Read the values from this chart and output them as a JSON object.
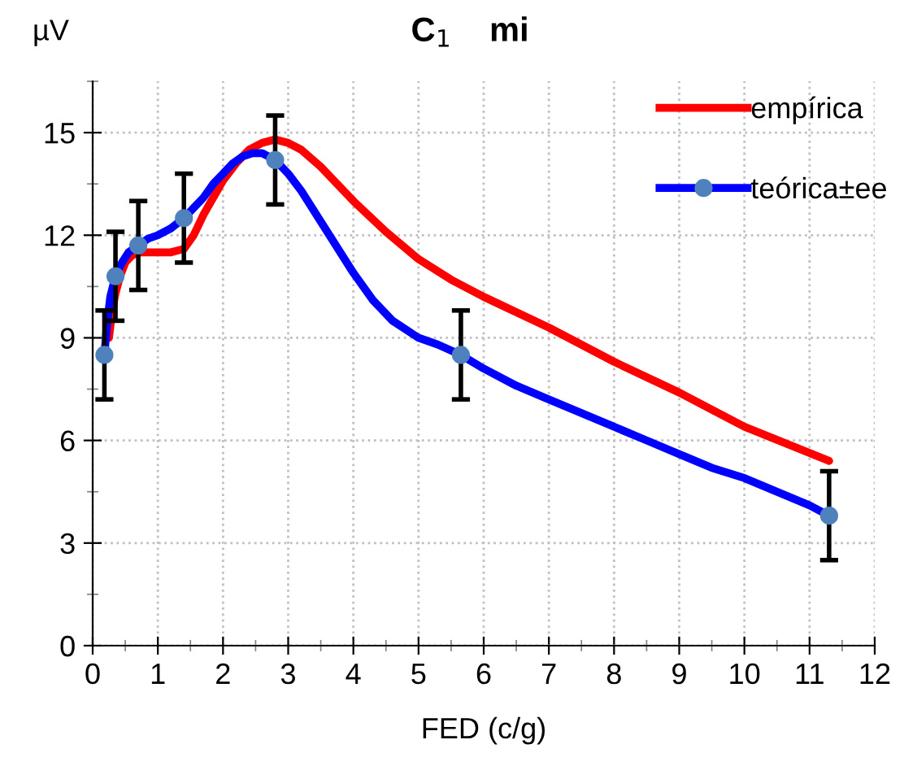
{
  "chart_data": {
    "type": "line",
    "title": "C$_{1}$    mi",
    "ylabel": "µV",
    "xlabel": "FED (c/g)",
    "xlim": [
      0,
      12
    ],
    "xticks": [
      0,
      1,
      2,
      3,
      4,
      5,
      6,
      7,
      8,
      9,
      10,
      11,
      12
    ],
    "ylim": [
      0,
      16.5
    ],
    "yticks": [
      0,
      3,
      6,
      9,
      12,
      15
    ],
    "grid": true,
    "legend": "top right",
    "series": [
      {
        "name": "empírica",
        "color": "#ff0000",
        "x": [
          0.25,
          0.3,
          0.35,
          0.42,
          0.5,
          0.6,
          0.7,
          0.85,
          1.0,
          1.2,
          1.4,
          1.55,
          1.7,
          1.85,
          2.0,
          2.2,
          2.4,
          2.6,
          2.8,
          3.0,
          3.2,
          3.5,
          4.0,
          4.5,
          5.0,
          5.5,
          6.0,
          7.0,
          8.0,
          9.0,
          10.0,
          11.3
        ],
        "values": [
          9.0,
          9.8,
          10.3,
          10.8,
          11.2,
          11.4,
          11.5,
          11.5,
          11.5,
          11.5,
          11.6,
          12.0,
          12.6,
          13.1,
          13.6,
          14.1,
          14.5,
          14.7,
          14.8,
          14.7,
          14.5,
          14.0,
          13.0,
          12.1,
          11.3,
          10.7,
          10.2,
          9.3,
          8.3,
          7.4,
          6.4,
          5.4
        ]
      },
      {
        "name": "teórica±ee",
        "color": "#0000ff",
        "x": [
          0.18,
          0.22,
          0.27,
          0.35,
          0.45,
          0.55,
          0.7,
          0.85,
          1.0,
          1.2,
          1.4,
          1.55,
          1.7,
          1.85,
          2.0,
          2.15,
          2.3,
          2.45,
          2.6,
          2.7,
          2.8,
          3.0,
          3.2,
          3.4,
          3.6,
          3.8,
          4.0,
          4.3,
          4.6,
          5.0,
          5.3,
          5.65,
          6.0,
          6.5,
          7.0,
          7.5,
          8.0,
          8.5,
          9.0,
          9.5,
          10.0,
          10.5,
          11.0,
          11.3
        ],
        "values": [
          8.5,
          9.4,
          10.2,
          10.8,
          11.2,
          11.5,
          11.7,
          11.9,
          12.0,
          12.2,
          12.5,
          12.8,
          13.1,
          13.5,
          13.8,
          14.1,
          14.3,
          14.4,
          14.4,
          14.3,
          14.2,
          13.8,
          13.3,
          12.7,
          12.1,
          11.5,
          10.9,
          10.1,
          9.5,
          9.0,
          8.8,
          8.5,
          8.1,
          7.6,
          7.2,
          6.8,
          6.4,
          6.0,
          5.6,
          5.2,
          4.9,
          4.5,
          4.1,
          3.8
        ]
      },
      {
        "type": "scatter",
        "color": "#4f81bd",
        "marker": "circle",
        "x": [
          0.18,
          0.35,
          0.7,
          1.4,
          2.8,
          5.65,
          11.3
        ],
        "values": [
          8.5,
          10.8,
          11.7,
          12.5,
          14.2,
          8.5,
          3.8
        ],
        "errors": [
          1.3,
          1.3,
          1.3,
          1.3,
          1.3,
          1.3,
          1.3
        ]
      }
    ]
  }
}
